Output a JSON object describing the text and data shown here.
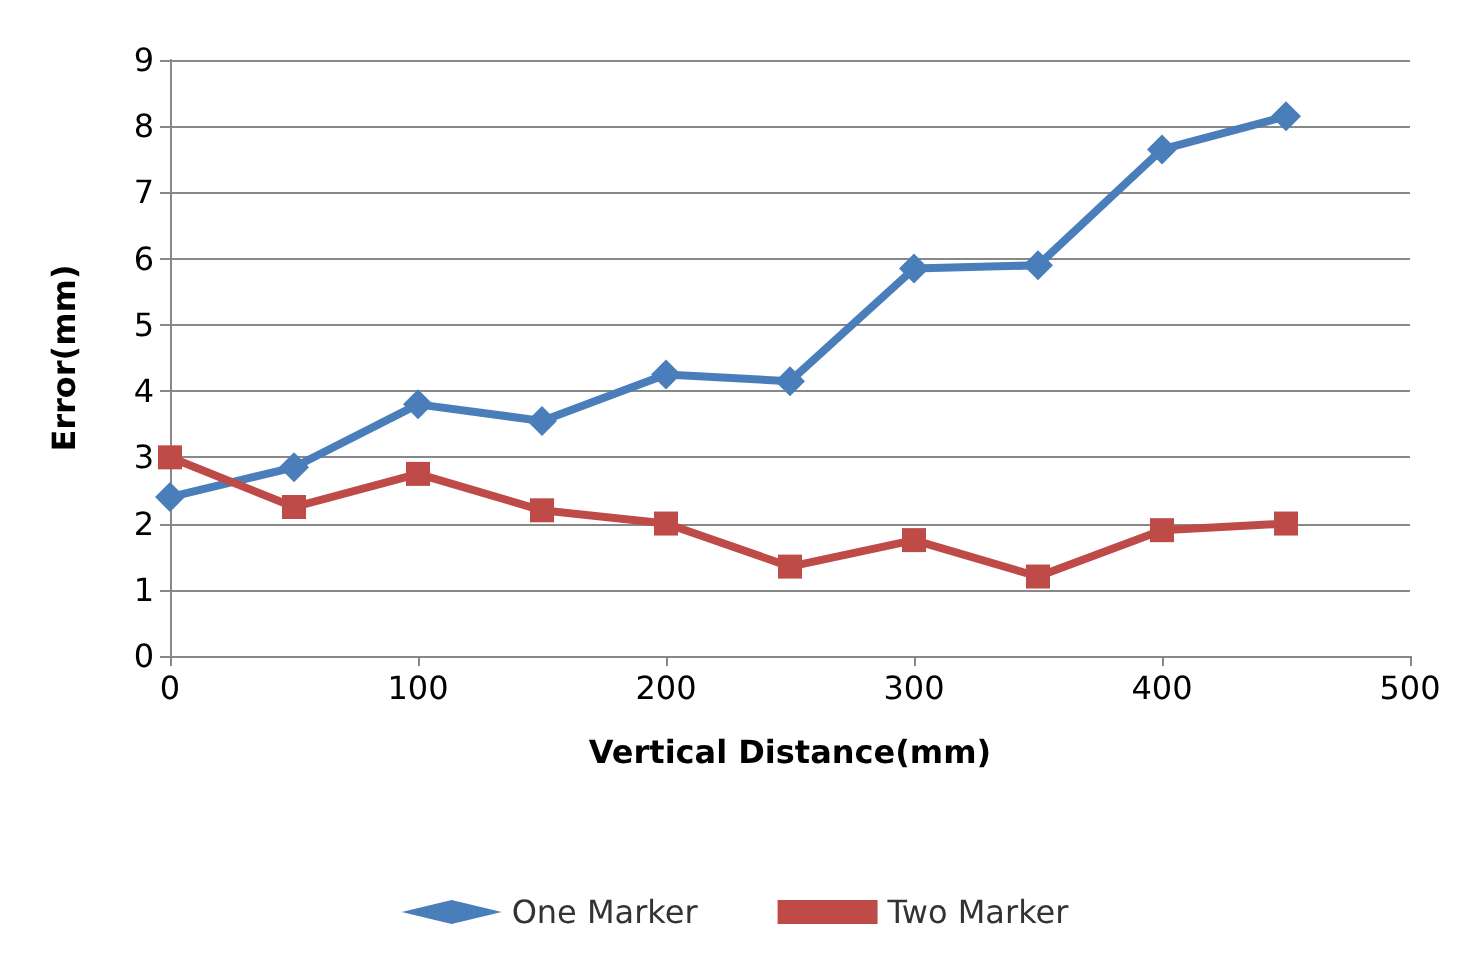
{
  "chart_data": {
    "type": "line",
    "xlabel": "Vertical Distance(mm)",
    "ylabel": "Error(mm)",
    "x": [
      0,
      50,
      100,
      150,
      200,
      250,
      300,
      350,
      400,
      450
    ],
    "series": [
      {
        "name": "One Marker",
        "color": "#4a7ebb",
        "marker": "diamond",
        "values": [
          2.4,
          2.85,
          3.8,
          3.55,
          4.25,
          4.15,
          5.85,
          5.9,
          7.65,
          8.15
        ]
      },
      {
        "name": "Two Marker",
        "color": "#be4b48",
        "marker": "square",
        "values": [
          3.0,
          2.25,
          2.75,
          2.2,
          2.0,
          1.35,
          1.75,
          1.2,
          1.9,
          2.0
        ]
      }
    ],
    "xlim": [
      0,
      500
    ],
    "xticks": [
      0,
      100,
      200,
      300,
      400,
      500
    ],
    "ylim": [
      0,
      9
    ],
    "yticks": [
      0,
      1,
      2,
      3,
      4,
      5,
      6,
      7,
      8,
      9
    ],
    "grid": "y",
    "legend": "bottom",
    "line_style": "solid"
  }
}
